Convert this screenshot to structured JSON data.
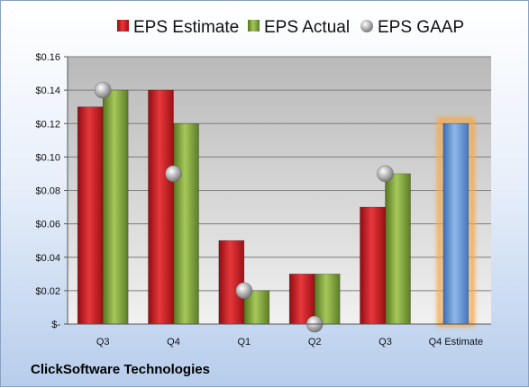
{
  "company": "ClickSoftware Technologies",
  "chart_data": {
    "type": "bar",
    "categories": [
      "Q3",
      "Q4",
      "Q1",
      "Q2",
      "Q3",
      "Q4 Estimate"
    ],
    "series": [
      {
        "name": "EPS Estimate",
        "kind": "bar",
        "color": "#c8161d",
        "values": [
          0.13,
          0.14,
          0.05,
          0.03,
          0.07,
          null
        ]
      },
      {
        "name": "EPS Actual",
        "kind": "bar",
        "color": "#7fa33a",
        "values": [
          0.14,
          0.12,
          0.02,
          0.03,
          0.09,
          null
        ]
      },
      {
        "name": "EPS GAAP",
        "kind": "point",
        "color": "#a8a8a8",
        "values": [
          0.14,
          0.09,
          0.02,
          0.0,
          0.09,
          null
        ]
      },
      {
        "name": "",
        "kind": "bar",
        "color": "#5b8fd0",
        "highlight": "#f5a94a",
        "values": [
          null,
          null,
          null,
          null,
          null,
          0.12
        ]
      }
    ],
    "yticks": [
      "$0.16",
      "$0.14",
      "$0.12",
      "$0.10",
      "$0.08",
      "$0.06",
      "$0.04",
      "$0.02",
      "$-"
    ],
    "ylim": [
      0,
      0.16
    ],
    "grid": true,
    "legend": "top"
  }
}
